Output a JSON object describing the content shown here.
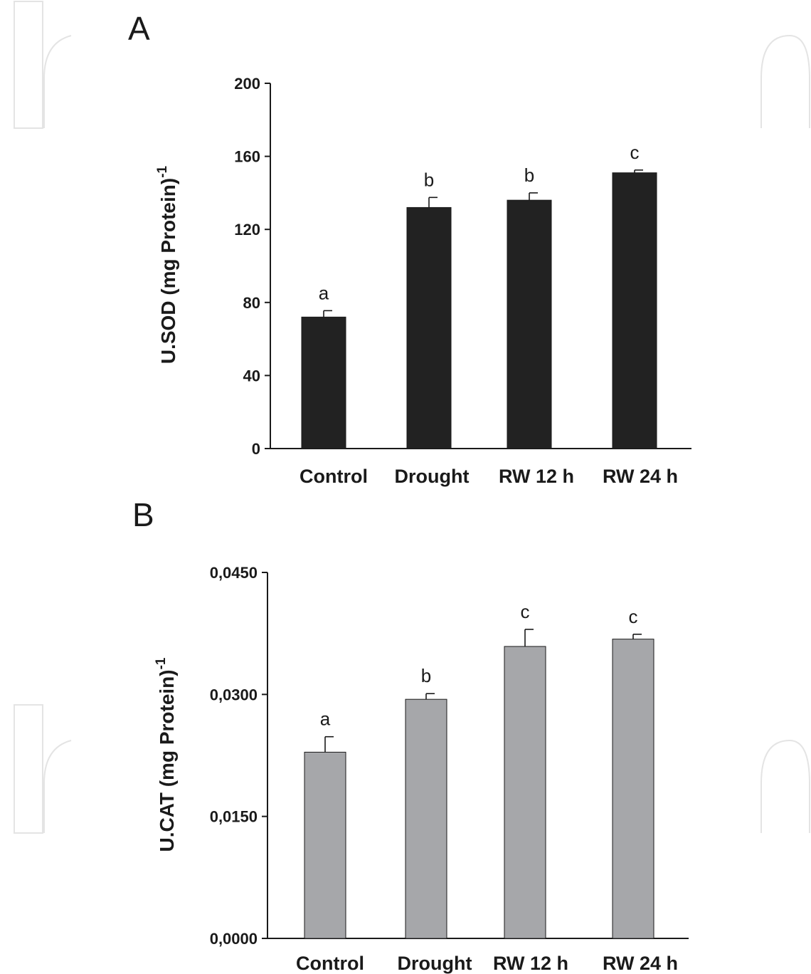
{
  "colors": {
    "bar_sod": "#222222",
    "bar_cat": "#a6a7aa",
    "axis": "#1a1a1a"
  },
  "chart_data": [
    {
      "panel": "A",
      "type": "bar",
      "categories": [
        "Control",
        "Drought",
        "RW 12 h",
        "RW 24 h"
      ],
      "values": [
        72,
        132,
        136,
        151
      ],
      "errors": [
        3.5,
        5.5,
        4,
        1.5
      ],
      "significance": [
        "a",
        "b",
        "b",
        "c"
      ],
      "ylabel": "U.SOD (mg Protein)",
      "ylabel_sup": "-1",
      "ylim": [
        0,
        200
      ],
      "yticks": [
        0,
        40,
        80,
        120,
        160,
        200
      ],
      "ytick_labels": [
        "0",
        "40",
        "80",
        "120",
        "160",
        "200"
      ],
      "grid": false
    },
    {
      "panel": "B",
      "type": "bar",
      "categories": [
        "Control",
        "Drought",
        "RW 12 h",
        "RW 24 h"
      ],
      "values": [
        0.0229,
        0.0294,
        0.0359,
        0.0368
      ],
      "errors": [
        0.0019,
        0.0007,
        0.0021,
        0.0006
      ],
      "significance": [
        "a",
        "b",
        "c",
        "c"
      ],
      "ylabel": "U.CAT (mg Protein)",
      "ylabel_sup": "-1",
      "ylim": [
        0,
        0.045
      ],
      "yticks": [
        0,
        0.015,
        0.03,
        0.045
      ],
      "ytick_labels": [
        "0,0000",
        "0,0150",
        "0,0300",
        "0,0450"
      ],
      "grid": false
    }
  ]
}
